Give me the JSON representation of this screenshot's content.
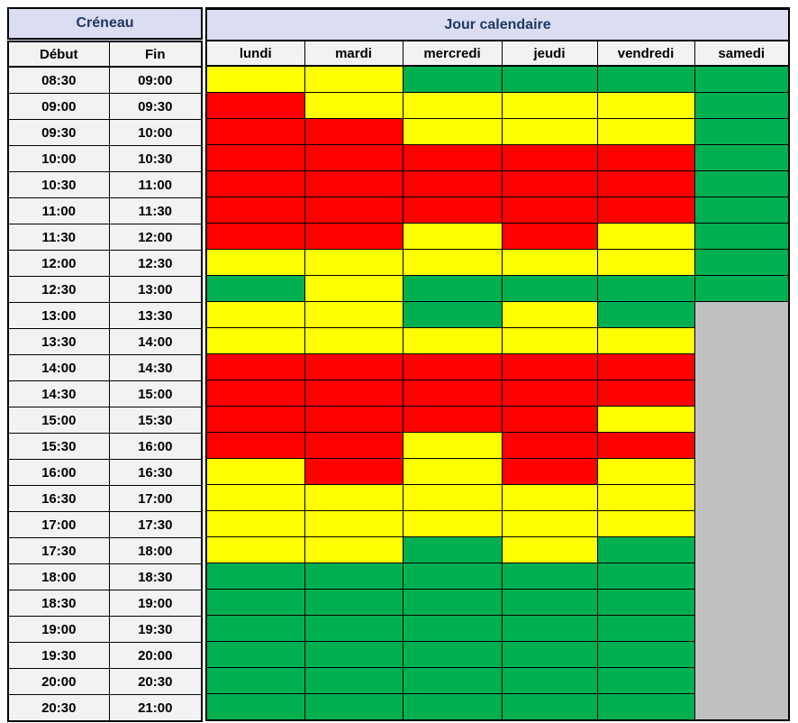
{
  "header": {
    "left_title": "Créneau",
    "right_title": "Jour calendaire",
    "left_columns": [
      "Début",
      "Fin"
    ]
  },
  "palette": {
    "title_bg": "#DBDDF2",
    "title_text": "#1F3864",
    "subheader_bg": "#F2F2F2",
    "grid_border": "#000000"
  },
  "chart_data": {
    "type": "heatmap",
    "title": "Créneau / Jour calendaire",
    "x_labels": [
      "lundi",
      "mardi",
      "mercredi",
      "jeudi",
      "vendredi",
      "samedi"
    ],
    "y_axis": "time slots (Début–Fin)",
    "color_legend": {
      "R": "#FF0000",
      "Y": "#FFFF00",
      "G": "#00B050",
      "X": "#C0C0C0"
    },
    "merge": {
      "col": 5,
      "from_row": 9,
      "rowspan": 16,
      "note": "samedi column from 13:00 onward is one merged gray block"
    },
    "rows": [
      {
        "start": "08:30",
        "end": "09:00",
        "cells": [
          "Y",
          "Y",
          "G",
          "G",
          "G",
          "G"
        ]
      },
      {
        "start": "09:00",
        "end": "09:30",
        "cells": [
          "R",
          "Y",
          "Y",
          "Y",
          "Y",
          "G"
        ]
      },
      {
        "start": "09:30",
        "end": "10:00",
        "cells": [
          "R",
          "R",
          "Y",
          "Y",
          "Y",
          "G"
        ]
      },
      {
        "start": "10:00",
        "end": "10:30",
        "cells": [
          "R",
          "R",
          "R",
          "R",
          "R",
          "G"
        ]
      },
      {
        "start": "10:30",
        "end": "11:00",
        "cells": [
          "R",
          "R",
          "R",
          "R",
          "R",
          "G"
        ]
      },
      {
        "start": "11:00",
        "end": "11:30",
        "cells": [
          "R",
          "R",
          "R",
          "R",
          "R",
          "G"
        ]
      },
      {
        "start": "11:30",
        "end": "12:00",
        "cells": [
          "R",
          "R",
          "Y",
          "R",
          "Y",
          "G"
        ]
      },
      {
        "start": "12:00",
        "end": "12:30",
        "cells": [
          "Y",
          "Y",
          "Y",
          "Y",
          "Y",
          "G"
        ]
      },
      {
        "start": "12:30",
        "end": "13:00",
        "cells": [
          "G",
          "Y",
          "G",
          "G",
          "G",
          "G"
        ]
      },
      {
        "start": "13:00",
        "end": "13:30",
        "cells": [
          "Y",
          "Y",
          "G",
          "Y",
          "G",
          "X"
        ]
      },
      {
        "start": "13:30",
        "end": "14:00",
        "cells": [
          "Y",
          "Y",
          "Y",
          "Y",
          "Y",
          "X"
        ]
      },
      {
        "start": "14:00",
        "end": "14:30",
        "cells": [
          "R",
          "R",
          "R",
          "R",
          "R",
          "X"
        ]
      },
      {
        "start": "14:30",
        "end": "15:00",
        "cells": [
          "R",
          "R",
          "R",
          "R",
          "R",
          "X"
        ]
      },
      {
        "start": "15:00",
        "end": "15:30",
        "cells": [
          "R",
          "R",
          "R",
          "R",
          "Y",
          "X"
        ]
      },
      {
        "start": "15:30",
        "end": "16:00",
        "cells": [
          "R",
          "R",
          "Y",
          "R",
          "R",
          "X"
        ]
      },
      {
        "start": "16:00",
        "end": "16:30",
        "cells": [
          "Y",
          "R",
          "Y",
          "R",
          "Y",
          "X"
        ]
      },
      {
        "start": "16:30",
        "end": "17:00",
        "cells": [
          "Y",
          "Y",
          "Y",
          "Y",
          "Y",
          "X"
        ]
      },
      {
        "start": "17:00",
        "end": "17:30",
        "cells": [
          "Y",
          "Y",
          "Y",
          "Y",
          "Y",
          "X"
        ]
      },
      {
        "start": "17:30",
        "end": "18:00",
        "cells": [
          "Y",
          "Y",
          "G",
          "Y",
          "G",
          "X"
        ]
      },
      {
        "start": "18:00",
        "end": "18:30",
        "cells": [
          "G",
          "G",
          "G",
          "G",
          "G",
          "X"
        ]
      },
      {
        "start": "18:30",
        "end": "19:00",
        "cells": [
          "G",
          "G",
          "G",
          "G",
          "G",
          "X"
        ]
      },
      {
        "start": "19:00",
        "end": "19:30",
        "cells": [
          "G",
          "G",
          "G",
          "G",
          "G",
          "X"
        ]
      },
      {
        "start": "19:30",
        "end": "20:00",
        "cells": [
          "G",
          "G",
          "G",
          "G",
          "G",
          "X"
        ]
      },
      {
        "start": "20:00",
        "end": "20:30",
        "cells": [
          "G",
          "G",
          "G",
          "G",
          "G",
          "X"
        ]
      },
      {
        "start": "20:30",
        "end": "21:00",
        "cells": [
          "G",
          "G",
          "G",
          "G",
          "G",
          "X"
        ]
      }
    ]
  }
}
